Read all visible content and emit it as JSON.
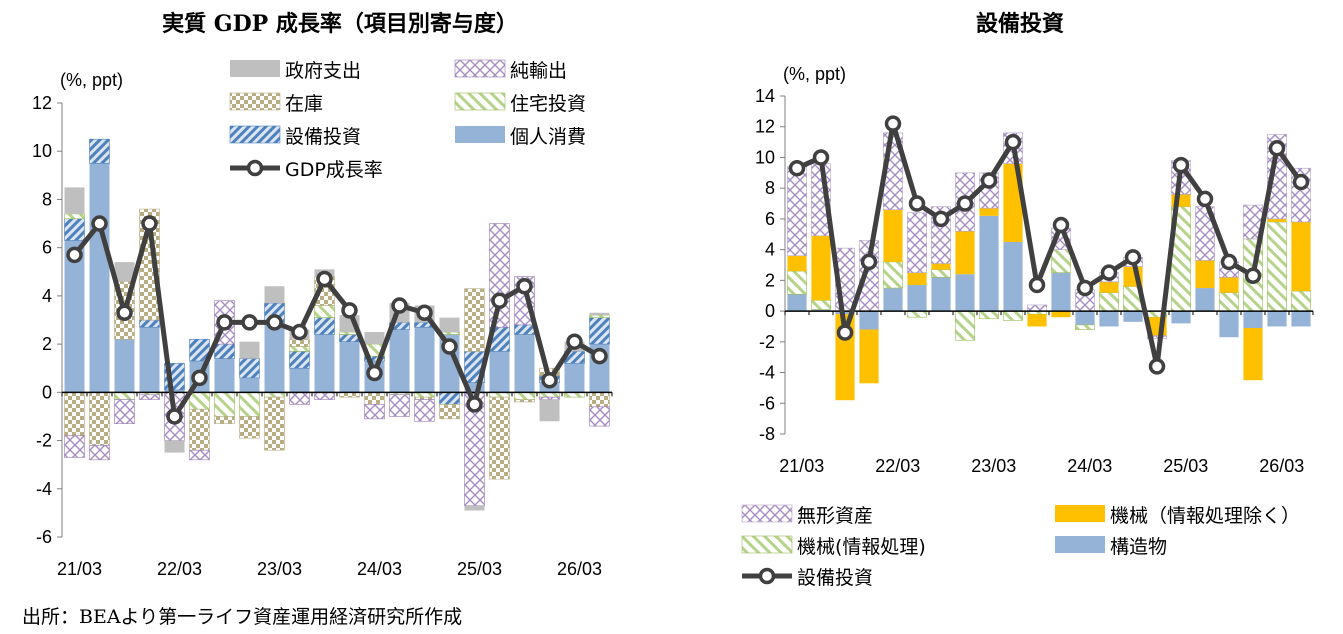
{
  "source_note": "出所：BEAより第一ライフ資産運用経済研究所作成",
  "chart_data": [
    {
      "type": "bar",
      "title": "実質 GDP 成長率（項目別寄与度）",
      "ylabel": "(%, ppt)",
      "ylim": [
        -6,
        12
      ],
      "yticks": [
        -6,
        -4,
        -2,
        0,
        2,
        4,
        6,
        8,
        10,
        12
      ],
      "x_tick_labels": [
        "21/03",
        "22/03",
        "23/03",
        "24/03",
        "25/03",
        "26/03"
      ],
      "categories": [
        "21/03",
        "21/06",
        "21/09",
        "21/12",
        "22/03",
        "22/06",
        "22/09",
        "22/12",
        "23/03",
        "23/06",
        "23/09",
        "23/12",
        "24/03",
        "24/06",
        "24/09",
        "24/12",
        "25/03",
        "25/06",
        "25/09",
        "25/12",
        "26/03",
        "26/06"
      ],
      "legend": [
        "政府支出",
        "純輸出",
        "在庫",
        "住宅投資",
        "設備投資",
        "個人消費",
        "GDP成長率"
      ],
      "series": [
        {
          "name": "個人消費",
          "color": "#95b3d7",
          "pattern": "solid",
          "values": [
            6.3,
            9.5,
            2.2,
            2.7,
            0.1,
            1.3,
            1.4,
            0.6,
            2.8,
            1.0,
            2.4,
            2.1,
            1.3,
            2.6,
            2.7,
            2.4,
            0.4,
            1.7,
            2.4,
            0.4,
            1.2,
            2.0
          ]
        },
        {
          "name": "設備投資",
          "color": "#4f81bd",
          "pattern": "diag",
          "values": [
            0.9,
            1.0,
            0.0,
            0.3,
            1.1,
            0.9,
            0.6,
            0.8,
            0.9,
            0.7,
            0.7,
            0.3,
            0.2,
            0.3,
            0.2,
            -0.5,
            1.3,
            1.0,
            0.4,
            0.3,
            0.5,
            1.1
          ]
        },
        {
          "name": "住宅投資",
          "color": "#9bbb59",
          "pattern": "stripe",
          "values": [
            0.2,
            0.0,
            -0.3,
            -0.1,
            0.0,
            -0.7,
            -1.0,
            -1.0,
            -0.2,
            0.2,
            0.5,
            0.1,
            0.5,
            -0.1,
            -0.2,
            0.1,
            0.0,
            -0.2,
            -0.3,
            -0.2,
            -0.2,
            0.1
          ]
        },
        {
          "name": "在庫",
          "color": "#b9ad84",
          "pattern": "checker",
          "values": [
            -1.8,
            -2.2,
            2.4,
            4.6,
            0.0,
            -1.7,
            -0.3,
            -0.9,
            -2.2,
            0.3,
            1.2,
            -0.2,
            -0.5,
            0.0,
            -0.1,
            -0.6,
            2.6,
            -3.4,
            -0.1,
            0.3,
            0.0,
            -0.6
          ]
        },
        {
          "name": "純輸出",
          "color": "#9979b7",
          "pattern": "cross",
          "values": [
            -0.9,
            -0.6,
            -1.0,
            -0.2,
            -2.0,
            -0.4,
            1.8,
            0.0,
            0.0,
            -0.5,
            -0.3,
            0.0,
            -0.6,
            -0.9,
            -0.9,
            0.0,
            -4.7,
            4.3,
            2.0,
            -0.1,
            0.0,
            -0.8
          ]
        },
        {
          "name": "政府支出",
          "color": "#bfbfbf",
          "pattern": "solid",
          "values": [
            1.1,
            0.0,
            0.8,
            0.0,
            -0.5,
            0.0,
            0.0,
            0.7,
            0.7,
            0.4,
            0.3,
            0.7,
            0.5,
            0.8,
            0.7,
            0.6,
            -0.2,
            0.0,
            0.0,
            -0.9,
            0.4,
            0.1
          ]
        }
      ],
      "line": {
        "name": "GDP成長率",
        "values": [
          5.7,
          7.0,
          3.3,
          7.0,
          -1.0,
          0.6,
          2.9,
          2.9,
          2.9,
          2.5,
          4.7,
          3.4,
          0.8,
          3.6,
          3.3,
          1.9,
          -0.5,
          3.8,
          4.4,
          0.5,
          2.1,
          1.5
        ]
      }
    },
    {
      "type": "bar",
      "title": "設備投資",
      "ylabel": "(%, ppt)",
      "ylim": [
        -8,
        14
      ],
      "yticks": [
        -8,
        -6,
        -4,
        -2,
        0,
        2,
        4,
        6,
        8,
        10,
        12,
        14
      ],
      "x_tick_labels": [
        "21/03",
        "22/03",
        "23/03",
        "24/03",
        "25/03",
        "26/03"
      ],
      "categories": [
        "21/03",
        "21/06",
        "21/09",
        "21/12",
        "22/03",
        "22/06",
        "22/09",
        "22/12",
        "23/03",
        "23/06",
        "23/09",
        "23/12",
        "24/03",
        "24/06",
        "24/09",
        "24/12",
        "25/03",
        "25/06",
        "25/09",
        "25/12",
        "26/03",
        "26/06"
      ],
      "legend": [
        "無形資産",
        "機械（情報処理除く）",
        "機械(情報処理)",
        "構造物",
        "設備投資"
      ],
      "series": [
        {
          "name": "構造物",
          "color": "#95b3d7",
          "pattern": "solid",
          "values": [
            1.1,
            0.1,
            -0.2,
            -1.2,
            1.5,
            1.7,
            2.2,
            2.4,
            6.2,
            4.5,
            0.0,
            2.5,
            -0.9,
            -1.0,
            -0.7,
            0.0,
            -0.8,
            1.5,
            -1.7,
            -1.1,
            -1.0,
            -1.0
          ]
        },
        {
          "name": "機械(情報処理)",
          "color": "#9bbb59",
          "pattern": "stripe",
          "values": [
            1.5,
            0.6,
            0.0,
            0.0,
            1.7,
            -0.4,
            0.5,
            -1.9,
            -0.5,
            -0.6,
            -0.2,
            1.5,
            -0.3,
            1.2,
            1.6,
            -0.4,
            6.8,
            0.0,
            1.2,
            4.7,
            5.8,
            1.3
          ]
        },
        {
          "name": "機械（情報処理除く）",
          "color": "#ffc000",
          "pattern": "solid",
          "values": [
            1.0,
            4.2,
            -5.6,
            -3.5,
            3.4,
            0.8,
            0.4,
            2.8,
            0.5,
            5.1,
            -0.8,
            -0.4,
            0.0,
            0.7,
            1.3,
            -1.2,
            0.8,
            1.8,
            1.0,
            -3.4,
            0.2,
            4.5
          ]
        },
        {
          "name": "無形資産",
          "color": "#b3a2c7",
          "pattern": "cross",
          "values": [
            5.8,
            4.7,
            4.1,
            4.6,
            5.0,
            3.9,
            3.7,
            3.8,
            2.3,
            2.0,
            0.4,
            1.4,
            1.4,
            0.6,
            0.6,
            -0.2,
            2.2,
            3.5,
            1.0,
            2.2,
            5.5,
            3.5
          ]
        }
      ],
      "line": {
        "name": "設備投資",
        "values": [
          9.3,
          10.0,
          -1.4,
          3.2,
          12.2,
          7.0,
          6.0,
          7.0,
          8.5,
          11.0,
          1.7,
          5.6,
          1.5,
          2.5,
          3.5,
          -3.6,
          9.5,
          7.3,
          3.2,
          2.3,
          10.6,
          8.4
        ]
      }
    }
  ]
}
